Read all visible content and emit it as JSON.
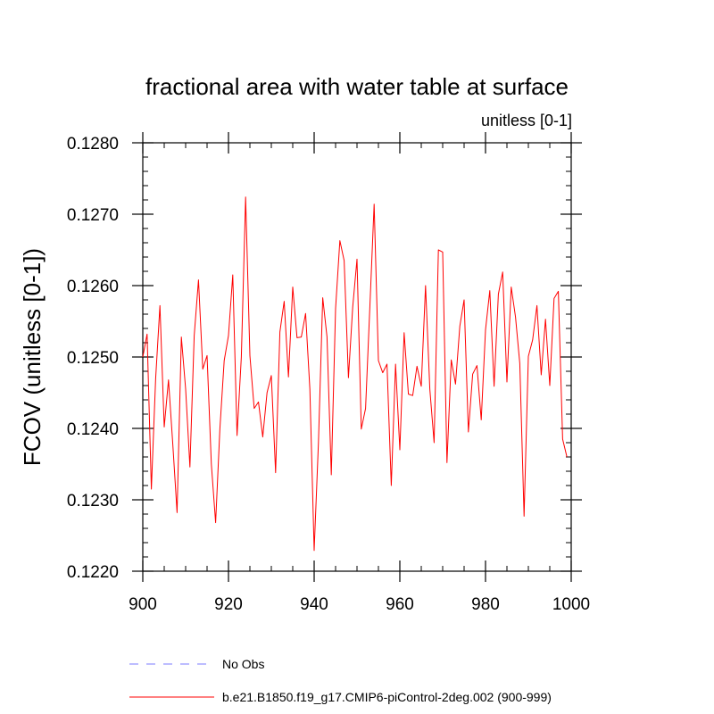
{
  "chart_data": {
    "type": "line",
    "title": "fractional area with water table at surface",
    "units_label": "unitless [0-1]",
    "ylabel": "FCOV  (unitless [0-1])",
    "xlabel": "",
    "xlim": [
      900,
      1000
    ],
    "ylim": [
      0.122,
      0.128
    ],
    "x_ticks": [
      900,
      920,
      940,
      960,
      980,
      1000
    ],
    "x_tick_labels": [
      "900",
      "920",
      "940",
      "960",
      "980",
      "1000"
    ],
    "y_ticks": [
      0.122,
      0.123,
      0.124,
      0.125,
      0.126,
      0.127,
      0.128
    ],
    "y_tick_labels": [
      "0.1220",
      "0.1230",
      "0.1240",
      "0.1250",
      "0.1260",
      "0.1270",
      "0.1280"
    ],
    "grid": false,
    "legend_position": "bottom-left",
    "series": [
      {
        "name": "No Obs",
        "color": "#7b7bff",
        "style": "dashed",
        "x": [],
        "values": []
      },
      {
        "name": "b.e21.B1850.f19_g17.CMIP6-piControl-2deg.002 (900-999)",
        "color": "#ff0000",
        "style": "solid",
        "x": [
          900,
          901,
          902,
          903,
          904,
          905,
          906,
          907,
          908,
          909,
          910,
          911,
          912,
          913,
          914,
          915,
          916,
          917,
          918,
          919,
          920,
          921,
          922,
          923,
          924,
          925,
          926,
          927,
          928,
          929,
          930,
          931,
          932,
          933,
          934,
          935,
          936,
          937,
          938,
          939,
          940,
          941,
          942,
          943,
          944,
          945,
          946,
          947,
          948,
          949,
          950,
          951,
          952,
          953,
          954,
          955,
          956,
          957,
          958,
          959,
          960,
          961,
          962,
          963,
          964,
          965,
          966,
          967,
          968,
          969,
          970,
          971,
          972,
          973,
          974,
          975,
          976,
          977,
          978,
          979,
          980,
          981,
          982,
          983,
          984,
          985,
          986,
          987,
          988,
          989,
          990,
          991,
          992,
          993,
          994,
          995,
          996,
          997,
          998,
          999
        ],
        "values": [
          0.125,
          0.12532,
          0.12315,
          0.1247,
          0.12572,
          0.12402,
          0.12468,
          0.12378,
          0.12282,
          0.12528,
          0.12455,
          0.12346,
          0.1253,
          0.12608,
          0.12483,
          0.12502,
          0.1235,
          0.12268,
          0.124,
          0.12495,
          0.1253,
          0.12615,
          0.1239,
          0.125,
          0.12724,
          0.12502,
          0.12428,
          0.12437,
          0.12388,
          0.1245,
          0.12474,
          0.12338,
          0.12535,
          0.12578,
          0.12472,
          0.12598,
          0.12527,
          0.12528,
          0.12561,
          0.12455,
          0.12229,
          0.1238,
          0.12583,
          0.12528,
          0.12335,
          0.12568,
          0.12663,
          0.12635,
          0.12471,
          0.1257,
          0.12637,
          0.12399,
          0.12428,
          0.1257,
          0.12714,
          0.12495,
          0.12478,
          0.1249,
          0.1232,
          0.1249,
          0.1237,
          0.12534,
          0.12448,
          0.12446,
          0.12487,
          0.12459,
          0.126,
          0.12455,
          0.1238,
          0.1265,
          0.12647,
          0.12352,
          0.12496,
          0.12462,
          0.12543,
          0.1258,
          0.12395,
          0.12476,
          0.12488,
          0.12412,
          0.12538,
          0.12593,
          0.12459,
          0.12588,
          0.12619,
          0.12465,
          0.12598,
          0.12556,
          0.12491,
          0.12277,
          0.12501,
          0.12524,
          0.12572,
          0.12475,
          0.12553,
          0.1246,
          0.12582,
          0.12592,
          0.12385,
          0.1236
        ]
      }
    ]
  }
}
